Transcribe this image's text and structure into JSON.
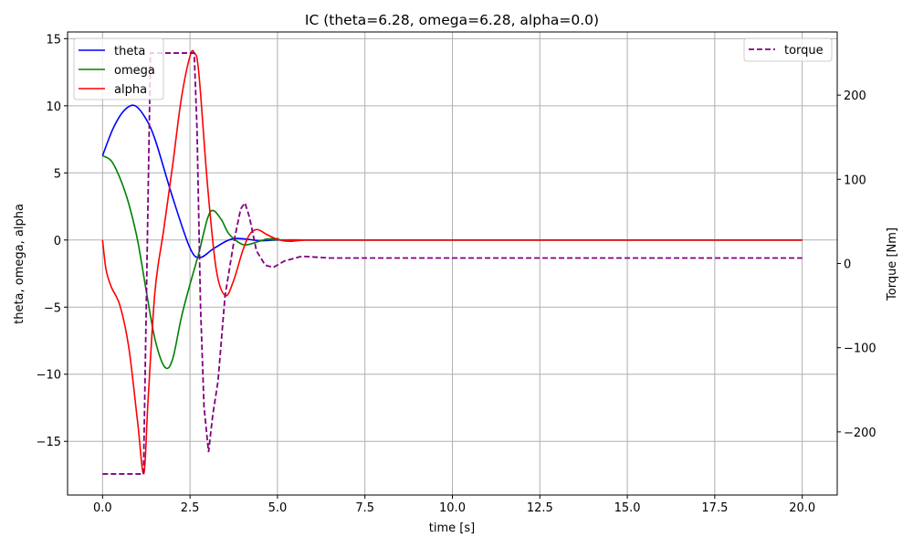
{
  "chart_data": {
    "type": "line",
    "title": "IC (theta=6.28, omega=6.28, alpha=0.0)",
    "xlabel": "time [s]",
    "ylabel": "theta, omega, alpha",
    "ylabel_right": "Torque [Nm]",
    "xlim": [
      -1.0,
      21.0
    ],
    "ylim": [
      -19.0,
      15.5
    ],
    "ylim_right": [
      -275,
      275
    ],
    "grid": true,
    "x_ticks": [
      "0.0",
      "2.5",
      "5.0",
      "7.5",
      "10.0",
      "12.5",
      "15.0",
      "17.5",
      "20.0"
    ],
    "y_ticks": [
      "15",
      "10",
      "5",
      "0",
      "−5",
      "−10",
      "−15"
    ],
    "y_ticks_right": [
      "200",
      "100",
      "0",
      "−100",
      "−200"
    ],
    "legend_left": {
      "placement": "upper-left",
      "entries": [
        "theta",
        "omega",
        "alpha"
      ]
    },
    "legend_right": {
      "placement": "upper-right",
      "entries": [
        "torque"
      ]
    },
    "series": [
      {
        "name": "theta",
        "axis": "left",
        "color": "#0000ff",
        "style": "solid",
        "x": [
          0,
          0.3,
          0.6,
          0.9,
          1.2,
          1.5,
          2.0,
          2.5,
          2.79,
          3.2,
          3.75,
          4.5,
          5.0,
          6.0,
          20.0
        ],
        "y": [
          6.28,
          8.3,
          9.6,
          10.03,
          9.2,
          7.5,
          3.2,
          -0.6,
          -1.3,
          -0.6,
          0.1,
          -0.05,
          0,
          0,
          0
        ]
      },
      {
        "name": "omega",
        "axis": "left",
        "color": "#008000",
        "style": "solid",
        "x": [
          0,
          0.25,
          0.5,
          0.75,
          1.0,
          1.25,
          1.5,
          1.78,
          2.0,
          2.25,
          2.5,
          2.75,
          3.0,
          3.16,
          3.4,
          3.6,
          3.9,
          4.14,
          4.6,
          5.0,
          6.0,
          20.0
        ],
        "y": [
          6.28,
          5.9,
          4.6,
          2.7,
          0,
          -3.8,
          -7.4,
          -9.47,
          -8.9,
          -5.8,
          -3.3,
          -1.0,
          1.6,
          2.2,
          1.5,
          0.5,
          -0.2,
          -0.35,
          0,
          0.1,
          0,
          0
        ]
      },
      {
        "name": "alpha",
        "axis": "left",
        "color": "#ff0000",
        "style": "solid",
        "x": [
          0,
          0.1,
          0.25,
          0.5,
          0.75,
          1.0,
          1.18,
          1.3,
          1.5,
          1.75,
          2.0,
          2.25,
          2.5,
          2.62,
          2.75,
          3.0,
          3.25,
          3.51,
          3.75,
          4.0,
          4.2,
          4.42,
          4.7,
          5.0,
          5.35,
          5.8,
          6.5,
          20.0
        ],
        "y": [
          0,
          -2.2,
          -3.5,
          -4.9,
          -8.0,
          -13.5,
          -17.4,
          -12.0,
          -3.8,
          0.8,
          5.5,
          10.5,
          13.7,
          13.95,
          12.5,
          4.1,
          -2.2,
          -4.14,
          -3.0,
          -0.85,
          0.4,
          0.78,
          0.4,
          0.05,
          -0.1,
          0,
          0,
          0
        ]
      },
      {
        "name": "torque",
        "axis": "right",
        "color": "#800080",
        "style": "dashed",
        "x": [
          0,
          1.17,
          1.37,
          2.62,
          2.7,
          2.8,
          2.9,
          3.03,
          3.15,
          3.3,
          3.5,
          3.75,
          3.95,
          4.07,
          4.2,
          4.4,
          4.65,
          4.88,
          5.2,
          5.7,
          6.5,
          20.0
        ],
        "y": [
          -250,
          -250,
          250,
          250,
          160,
          -50,
          -170,
          -224,
          -180,
          -140,
          -39,
          25,
          65,
          72,
          55,
          15,
          -2,
          -4.7,
          3,
          8.6,
          6.5,
          6.5
        ]
      }
    ]
  }
}
